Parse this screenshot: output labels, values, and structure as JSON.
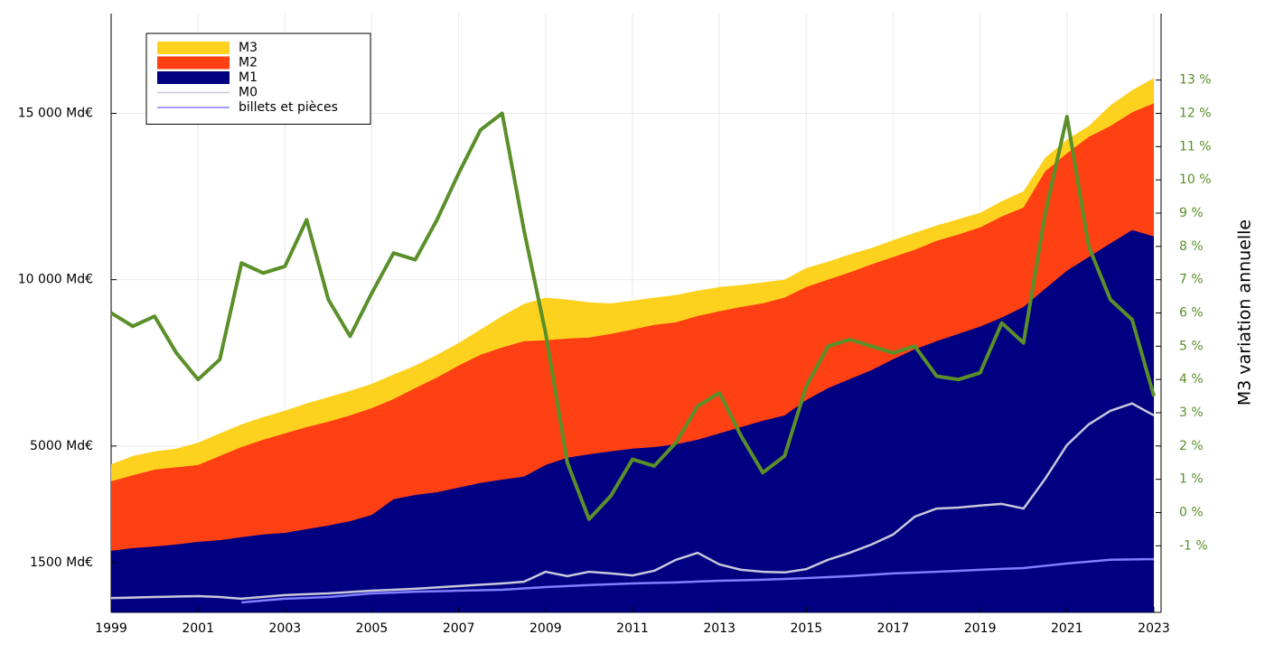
{
  "chart_data": {
    "type": "area-line",
    "y2label": "M3 variation annuelle",
    "xlim": [
      1999,
      2023
    ],
    "xticks": [
      1999,
      2001,
      2003,
      2005,
      2007,
      2009,
      2011,
      2013,
      2015,
      2017,
      2019,
      2021,
      2023
    ],
    "ylim": [
      0,
      18000
    ],
    "yticks": [
      {
        "value": 1500,
        "label": "1500 Md€"
      },
      {
        "value": 5000,
        "label": "5000 Md€"
      },
      {
        "value": 10000,
        "label": "10 000 Md€"
      },
      {
        "value": 15000,
        "label": "15 000 Md€"
      }
    ],
    "y2lim": [
      -3,
      15
    ],
    "y2ticks": [
      {
        "value": -1,
        "label": "-1 %"
      },
      {
        "value": 0,
        "label": "0 %"
      },
      {
        "value": 1,
        "label": "1 %"
      },
      {
        "value": 2,
        "label": "2 %"
      },
      {
        "value": 3,
        "label": "3 %"
      },
      {
        "value": 4,
        "label": "4 %"
      },
      {
        "value": 5,
        "label": "5 %"
      },
      {
        "value": 6,
        "label": "6 %"
      },
      {
        "value": 7,
        "label": "7 %"
      },
      {
        "value": 8,
        "label": "8 %"
      },
      {
        "value": 9,
        "label": "9 %"
      },
      {
        "value": 10,
        "label": "10 %"
      },
      {
        "value": 11,
        "label": "11 %"
      },
      {
        "value": 12,
        "label": "12 %"
      },
      {
        "value": 13,
        "label": "13 %"
      }
    ],
    "grid": true,
    "legend": "upper left",
    "x": [
      1999,
      1999.5,
      2000,
      2000.5,
      2001,
      2001.5,
      2002,
      2002.5,
      2003,
      2003.5,
      2004,
      2004.5,
      2005,
      2005.5,
      2006,
      2006.5,
      2007,
      2007.5,
      2008,
      2008.5,
      2009,
      2009.5,
      2010,
      2010.5,
      2011,
      2011.5,
      2012,
      2012.5,
      2013,
      2013.5,
      2014,
      2014.5,
      2015,
      2015.5,
      2016,
      2016.5,
      2017,
      2017.5,
      2018,
      2018.5,
      2019,
      2019.5,
      2020,
      2020.5,
      2021,
      2021.5,
      2022,
      2022.5,
      2023
    ],
    "series": [
      {
        "name": "M3",
        "color": "#fcd21f",
        "kind": "area",
        "values": [
          4450,
          4700,
          4840,
          4920,
          5100,
          5380,
          5650,
          5870,
          6060,
          6280,
          6470,
          6660,
          6870,
          7150,
          7420,
          7740,
          8100,
          8500,
          8910,
          9270,
          9460,
          9400,
          9320,
          9290,
          9370,
          9460,
          9540,
          9670,
          9780,
          9840,
          9920,
          10000,
          10350,
          10540,
          10760,
          10950,
          11190,
          11410,
          11630,
          11820,
          12010,
          12360,
          12660,
          13670,
          14210,
          14620,
          15240,
          15700,
          16060
        ]
      },
      {
        "name": "M2",
        "color": "#fe4013",
        "kind": "area",
        "values": [
          3940,
          4120,
          4290,
          4360,
          4430,
          4700,
          4970,
          5190,
          5380,
          5570,
          5730,
          5920,
          6140,
          6410,
          6740,
          7060,
          7420,
          7740,
          7960,
          8150,
          8180,
          8230,
          8260,
          8370,
          8500,
          8640,
          8720,
          8910,
          9050,
          9180,
          9290,
          9460,
          9780,
          10000,
          10220,
          10460,
          10680,
          10900,
          11170,
          11360,
          11570,
          11900,
          12170,
          13260,
          13800,
          14290,
          14620,
          15030,
          15300
        ]
      },
      {
        "name": "M1",
        "color": "#000080",
        "kind": "area",
        "values": [
          1850,
          1930,
          1980,
          2040,
          2120,
          2170,
          2260,
          2340,
          2390,
          2500,
          2610,
          2740,
          2930,
          3400,
          3530,
          3610,
          3750,
          3890,
          3990,
          4080,
          4430,
          4650,
          4750,
          4840,
          4920,
          4970,
          5050,
          5190,
          5380,
          5570,
          5760,
          5920,
          6380,
          6740,
          7010,
          7280,
          7610,
          7910,
          8150,
          8370,
          8590,
          8860,
          9180,
          9730,
          10270,
          10680,
          11090,
          11490,
          11300
        ]
      },
      {
        "name": "M0",
        "color": "#c8c8dc",
        "kind": "line",
        "values": [
          430,
          445,
          460,
          475,
          490,
          460,
          410,
          465,
          520,
          545,
          570,
          610,
          650,
          680,
          710,
          750,
          790,
          830,
          870,
          920,
          1220,
          1090,
          1220,
          1170,
          1110,
          1250,
          1580,
          1790,
          1440,
          1280,
          1220,
          1200,
          1300,
          1580,
          1790,
          2040,
          2340,
          2880,
          3120,
          3150,
          3210,
          3260,
          3120,
          4020,
          5030,
          5650,
          6060,
          6280,
          5920
        ]
      },
      {
        "name": "billets et pièces",
        "color": "#7f7fff",
        "kind": "line",
        "values": [
          null,
          null,
          null,
          null,
          null,
          null,
          300,
          355,
          410,
          435,
          460,
          515,
          570,
          595,
          620,
          635,
          650,
          665,
          680,
          720,
          760,
          790,
          820,
          845,
          870,
          885,
          900,
          925,
          950,
          965,
          980,
          1005,
          1030,
          1060,
          1090,
          1130,
          1170,
          1195,
          1220,
          1250,
          1280,
          1305,
          1330,
          1400,
          1470,
          1525,
          1580,
          1590,
          1600
        ]
      },
      {
        "color": "#5a8f29",
        "kind": "line",
        "axis": "y2",
        "values": [
          6.0,
          5.6,
          5.9,
          4.8,
          4.0,
          4.6,
          7.5,
          7.2,
          7.4,
          8.8,
          6.4,
          5.3,
          6.6,
          7.8,
          7.6,
          8.8,
          10.2,
          11.5,
          12.0,
          8.5,
          5.4,
          1.5,
          -0.2,
          0.5,
          1.6,
          1.4,
          2.1,
          3.2,
          3.6,
          2.3,
          1.2,
          1.7,
          3.8,
          5.0,
          5.2,
          5.0,
          4.8,
          5.0,
          4.1,
          4.0,
          4.2,
          5.7,
          5.1,
          9.0,
          11.9,
          8.0,
          6.4,
          5.8,
          3.5
        ]
      }
    ]
  }
}
